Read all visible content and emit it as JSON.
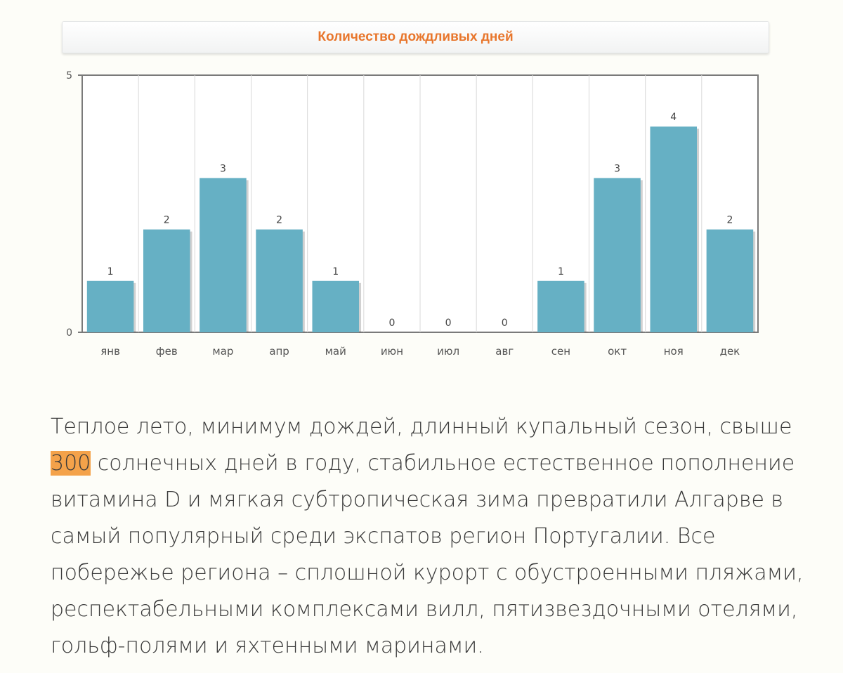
{
  "chart_data": {
    "type": "bar",
    "title": "Количество дождливых дней",
    "categories": [
      "янв",
      "фев",
      "мар",
      "апр",
      "май",
      "июн",
      "июл",
      "авг",
      "сен",
      "окт",
      "ноя",
      "дек"
    ],
    "values": [
      1,
      2,
      3,
      2,
      1,
      0,
      0,
      0,
      1,
      3,
      4,
      2
    ],
    "ylim": [
      0,
      5
    ],
    "yticks": [
      "0",
      "5"
    ],
    "xlabel": "",
    "ylabel": "",
    "grid": "vertical",
    "bar_color": "#66b0c4",
    "title_color": "#e8762c",
    "data_labels": true
  },
  "article": {
    "text_before": "Теплое лето, минимум дождей, длинный купальный сезон, свыше ",
    "highlight": "300",
    "text_after": " солнечных дней в году, стабильное естественное пополнение витамина D и мягкая субтропическая зима превратили Алгарве в самый популярный среди экспатов регион Португалии. Все побережье региона – сплошной курорт с обустроенными пляжами, респектабельными комплексами вилл, пятизвездочными отелями, гольф-полями и яхтенными маринами.",
    "highlight_color": "#f4a24a"
  }
}
